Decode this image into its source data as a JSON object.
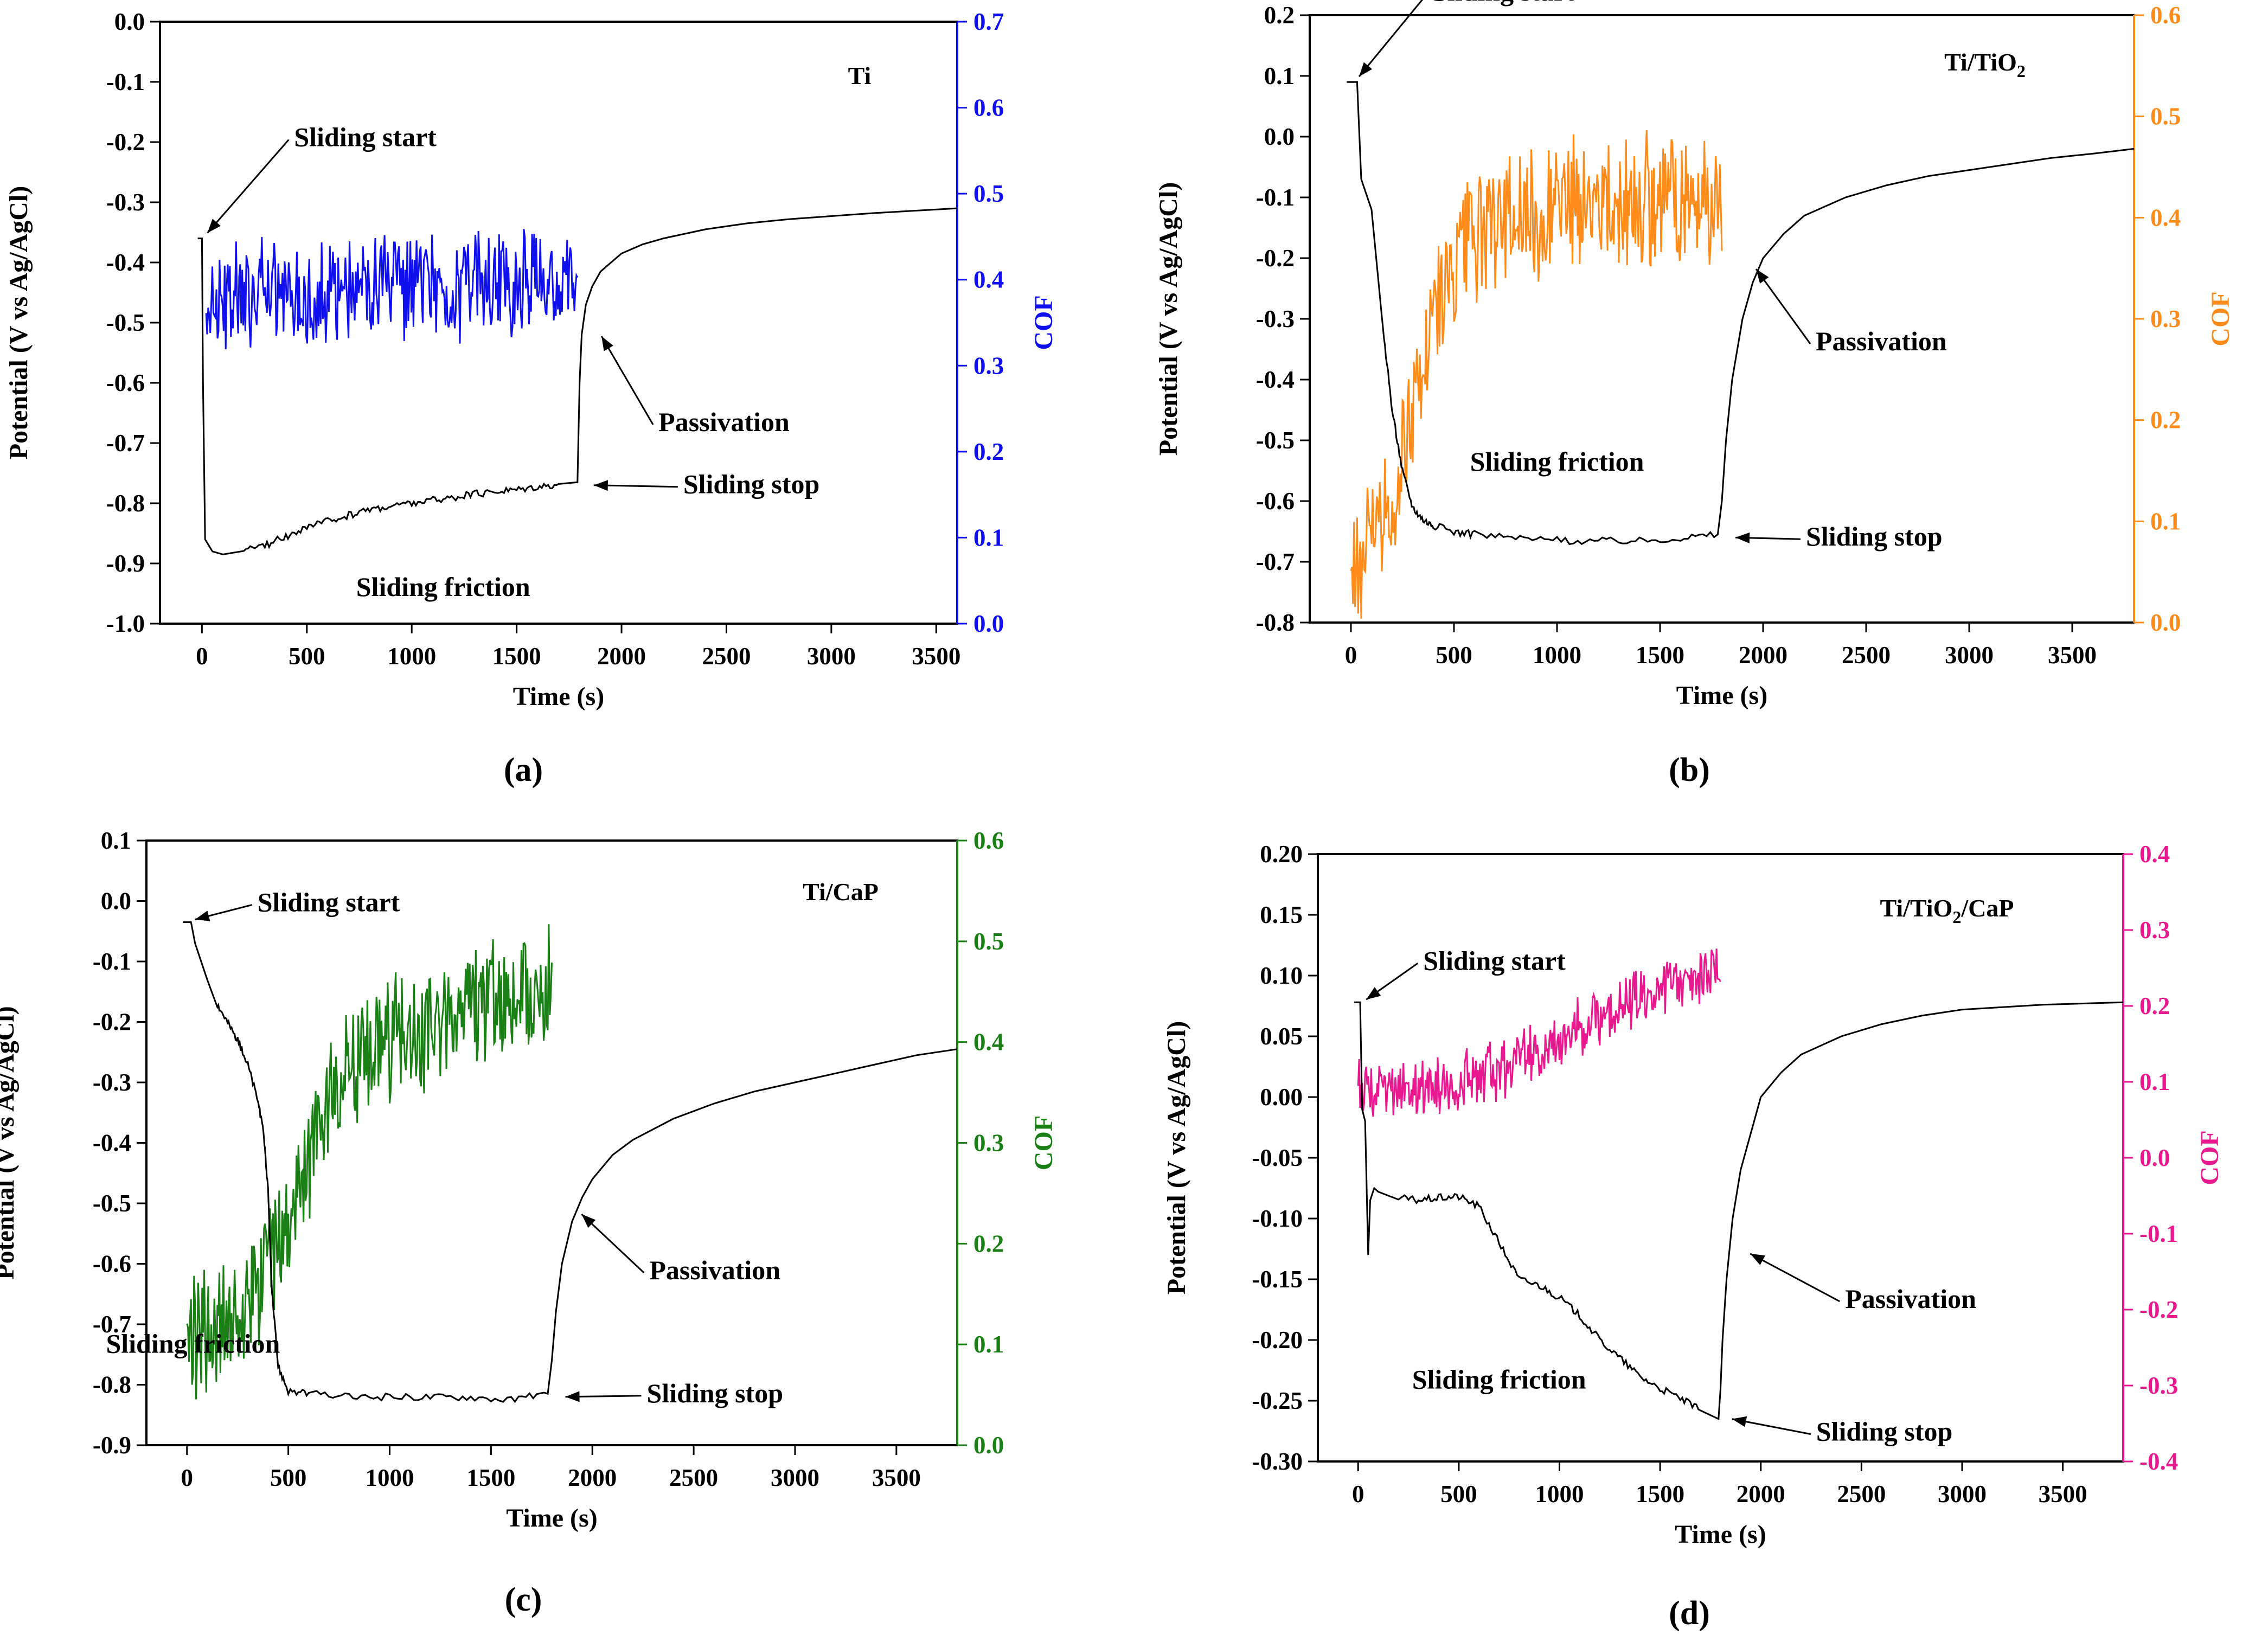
{
  "figure": {
    "panels": [
      "(a)",
      "(b)",
      "(c)",
      "(d)"
    ]
  },
  "colors": {
    "potential": "#000000",
    "cof_a": "#1010ee",
    "cof_b": "#ff8c1a",
    "cof_c": "#1a7f14",
    "cof_d": "#e8198f"
  },
  "chart_data": [
    {
      "type": "line",
      "label": "(a)",
      "title": "Ti",
      "xlabel": "Time (s)",
      "ylabel": "Potential (V vs Ag/AgCl)",
      "y2label": "COF",
      "xlim": [
        -200,
        3600
      ],
      "ylim": [
        -1.0,
        0.0
      ],
      "y2lim": [
        0.0,
        0.7
      ],
      "xticks": [
        0,
        500,
        1000,
        1500,
        2000,
        2500,
        3000,
        3500
      ],
      "yticks": [
        "0.0",
        "-0.1",
        "-0.2",
        "-0.3",
        "-0.4",
        "-0.5",
        "-0.6",
        "-0.7",
        "-0.8",
        "-0.9",
        "-1.0"
      ],
      "y2ticks": [
        "0.0",
        "0.1",
        "0.2",
        "0.3",
        "0.4",
        "0.5",
        "0.6",
        "0.7"
      ],
      "series": [
        {
          "name": "Potential",
          "axis": "left",
          "color": "#000000",
          "x": [
            -20,
            0,
            5,
            15,
            50,
            100,
            200,
            300,
            400,
            500,
            600,
            700,
            800,
            900,
            1000,
            1100,
            1200,
            1300,
            1400,
            1500,
            1600,
            1700,
            1790,
            1800,
            1810,
            1830,
            1860,
            1900,
            1950,
            2000,
            2100,
            2200,
            2400,
            2600,
            2800,
            3000,
            3200,
            3400,
            3600
          ],
          "values": [
            -0.36,
            -0.36,
            -0.6,
            -0.86,
            -0.88,
            -0.885,
            -0.88,
            -0.87,
            -0.855,
            -0.84,
            -0.83,
            -0.82,
            -0.81,
            -0.805,
            -0.8,
            -0.795,
            -0.79,
            -0.785,
            -0.78,
            -0.777,
            -0.772,
            -0.768,
            -0.765,
            -0.6,
            -0.52,
            -0.47,
            -0.44,
            -0.415,
            -0.4,
            -0.385,
            -0.37,
            -0.36,
            -0.345,
            -0.335,
            -0.328,
            -0.323,
            -0.318,
            -0.314,
            -0.31
          ]
        },
        {
          "name": "COF",
          "axis": "right",
          "color": "#1010ee",
          "x_range": [
            20,
            1790
          ],
          "mean": [
            0.38,
            0.38,
            0.385,
            0.39,
            0.395,
            0.4
          ],
          "amp": 0.055
        }
      ],
      "annotations": [
        {
          "text": "Sliding start",
          "x": 0,
          "y": -0.36
        },
        {
          "text": "Passivation",
          "x": 1840,
          "y": -0.5
        },
        {
          "text": "Sliding stop",
          "x": 1790,
          "y": -0.77
        },
        {
          "text": "Sliding friction",
          "x": 1150,
          "y": -0.9
        }
      ]
    },
    {
      "type": "line",
      "label": "(b)",
      "title": "Ti/TiO",
      "title_sub": "2",
      "xlabel": "Time (s)",
      "ylabel": "Potential (V vs Ag/AgCl)",
      "y2label": "COF",
      "xlim": [
        -200,
        3800
      ],
      "ylim": [
        -0.8,
        0.2
      ],
      "y2lim": [
        0.0,
        0.6
      ],
      "xticks": [
        0,
        500,
        1000,
        1500,
        2000,
        2500,
        3000,
        3500
      ],
      "yticks": [
        "0.2",
        "0.1",
        "0.0",
        "-0.1",
        "-0.2",
        "-0.3",
        "-0.4",
        "-0.5",
        "-0.6",
        "-0.7",
        "-0.8"
      ],
      "y2ticks": [
        "0.0",
        "0.1",
        "0.2",
        "0.3",
        "0.4",
        "0.5",
        "0.6"
      ],
      "series": [
        {
          "name": "Potential",
          "axis": "left",
          "color": "#000000",
          "x": [
            -20,
            0,
            30,
            50,
            60,
            100,
            150,
            200,
            250,
            300,
            350,
            400,
            500,
            600,
            800,
            1000,
            1200,
            1400,
            1600,
            1780,
            1800,
            1820,
            1850,
            1900,
            1950,
            2000,
            2100,
            2200,
            2400,
            2600,
            2800,
            3000,
            3200,
            3400,
            3600,
            3800
          ],
          "values": [
            0.09,
            0.09,
            0.09,
            -0.07,
            -0.08,
            -0.12,
            -0.3,
            -0.45,
            -0.55,
            -0.61,
            -0.63,
            -0.64,
            -0.65,
            -0.655,
            -0.66,
            -0.665,
            -0.665,
            -0.665,
            -0.66,
            -0.655,
            -0.6,
            -0.5,
            -0.4,
            -0.3,
            -0.24,
            -0.2,
            -0.16,
            -0.13,
            -0.1,
            -0.08,
            -0.065,
            -0.055,
            -0.045,
            -0.035,
            -0.028,
            -0.02
          ]
        },
        {
          "name": "COF",
          "axis": "right",
          "color": "#ff8c1a",
          "x_range": [
            0,
            1800
          ],
          "mean": [
            0.05,
            0.12,
            0.3,
            0.38,
            0.4,
            0.41,
            0.42,
            0.41,
            0.42,
            0.41
          ],
          "amp": 0.06
        }
      ],
      "annotations": [
        {
          "text": "Sliding start",
          "x": 0,
          "y": 0.09
        },
        {
          "text": "Passivation",
          "x": 1900,
          "y": -0.2
        },
        {
          "text": "Sliding stop",
          "x": 1800,
          "y": -0.66
        },
        {
          "text": "Sliding friction",
          "x": 1000,
          "y": -0.55
        }
      ]
    },
    {
      "type": "line",
      "label": "(c)",
      "title": "Ti/CaP",
      "xlabel": "Time (s)",
      "ylabel": "Potential (V vs Ag/AgCl)",
      "y2label": "COF",
      "xlim": [
        -200,
        3800
      ],
      "ylim": [
        -0.9,
        0.1
      ],
      "y2lim": [
        0.0,
        0.6
      ],
      "xticks": [
        0,
        500,
        1000,
        1500,
        2000,
        2500,
        3000,
        3500
      ],
      "yticks": [
        "0.1",
        "0.0",
        "-0.1",
        "-0.2",
        "-0.3",
        "-0.4",
        "-0.5",
        "-0.6",
        "-0.7",
        "-0.8",
        "-0.9"
      ],
      "y2ticks": [
        "0.0",
        "0.1",
        "0.2",
        "0.3",
        "0.4",
        "0.5",
        "0.6"
      ],
      "series": [
        {
          "name": "Potential",
          "axis": "left",
          "color": "#000000",
          "x": [
            -20,
            0,
            20,
            40,
            70,
            100,
            150,
            200,
            250,
            300,
            350,
            380,
            400,
            420,
            450,
            500,
            600,
            800,
            1000,
            1200,
            1400,
            1600,
            1780,
            1800,
            1820,
            1850,
            1900,
            1950,
            2000,
            2100,
            2200,
            2400,
            2600,
            2800,
            3000,
            3200,
            3400,
            3600,
            3800
          ],
          "values": [
            -0.035,
            -0.035,
            -0.035,
            -0.07,
            -0.1,
            -0.13,
            -0.17,
            -0.2,
            -0.23,
            -0.27,
            -0.33,
            -0.39,
            -0.48,
            -0.65,
            -0.77,
            -0.81,
            -0.815,
            -0.82,
            -0.82,
            -0.82,
            -0.82,
            -0.825,
            -0.815,
            -0.76,
            -0.68,
            -0.6,
            -0.53,
            -0.49,
            -0.46,
            -0.42,
            -0.395,
            -0.36,
            -0.335,
            -0.315,
            -0.3,
            -0.285,
            -0.27,
            -0.255,
            -0.245
          ]
        },
        {
          "name": "COF",
          "axis": "right",
          "color": "#1a7f14",
          "x_range": [
            0,
            1800
          ],
          "mean": [
            0.1,
            0.12,
            0.15,
            0.2,
            0.33,
            0.38,
            0.4,
            0.41,
            0.43,
            0.44,
            0.44,
            0.45
          ],
          "amp": 0.055
        }
      ],
      "annotations": [
        {
          "text": "Sliding start",
          "x": 0,
          "y": -0.035
        },
        {
          "text": "Passivation",
          "x": 1880,
          "y": -0.5
        },
        {
          "text": "Sliding stop",
          "x": 1800,
          "y": -0.82
        },
        {
          "text": "Sliding friction",
          "x": 1100,
          "y": -0.72
        }
      ]
    },
    {
      "type": "line",
      "label": "(d)",
      "title": "Ti/TiO",
      "title_sub": "2",
      "title_tail": "/CaP",
      "xlabel": "Time (s)",
      "ylabel": "Potential (V vs Ag/AgCl)",
      "y2label": "COF",
      "xlim": [
        -200,
        3800
      ],
      "ylim": [
        -0.3,
        0.2
      ],
      "y2lim": [
        -0.4,
        0.4
      ],
      "xticks": [
        0,
        500,
        1000,
        1500,
        2000,
        2500,
        3000,
        3500
      ],
      "yticks": [
        "0.20",
        "0.15",
        "0.10",
        "0.05",
        "0.00",
        "-0.05",
        "-0.10",
        "-0.15",
        "-0.20",
        "-0.25",
        "-0.30"
      ],
      "y2ticks": [
        "0.4",
        "0.3",
        "0.2",
        "0.1",
        "0.0",
        "-0.1",
        "-0.2",
        "-0.3",
        "-0.4"
      ],
      "series": [
        {
          "name": "Potential",
          "axis": "left",
          "color": "#000000",
          "x": [
            -20,
            0,
            10,
            20,
            35,
            50,
            60,
            80,
            100,
            200,
            300,
            400,
            500,
            600,
            700,
            800,
            900,
            1000,
            1100,
            1200,
            1300,
            1400,
            1500,
            1600,
            1700,
            1790,
            1800,
            1810,
            1830,
            1860,
            1900,
            1950,
            2000,
            2100,
            2200,
            2400,
            2600,
            2800,
            3000,
            3200,
            3400,
            3600,
            3800
          ],
          "values": [
            0.078,
            0.078,
            0.078,
            -0.01,
            -0.02,
            -0.13,
            -0.085,
            -0.075,
            -0.078,
            -0.083,
            -0.085,
            -0.083,
            -0.082,
            -0.09,
            -0.12,
            -0.15,
            -0.155,
            -0.165,
            -0.18,
            -0.2,
            -0.215,
            -0.23,
            -0.24,
            -0.248,
            -0.258,
            -0.265,
            -0.24,
            -0.2,
            -0.15,
            -0.1,
            -0.06,
            -0.03,
            0.0,
            0.02,
            0.035,
            0.05,
            0.06,
            0.067,
            0.072,
            0.074,
            0.076,
            0.077,
            0.078
          ]
        },
        {
          "name": "COF",
          "axis": "right",
          "color": "#e8198f",
          "x_range": [
            0,
            1800
          ],
          "mean": [
            0.09,
            0.09,
            0.09,
            0.1,
            0.11,
            0.13,
            0.15,
            0.18,
            0.2,
            0.22,
            0.24,
            0.24
          ],
          "amp": 0.035
        }
      ],
      "annotations": [
        {
          "text": "Sliding start",
          "x": 0,
          "y": 0.078
        },
        {
          "text": "Passivation",
          "x": 1880,
          "y": -0.12
        },
        {
          "text": "Sliding stop",
          "x": 1790,
          "y": -0.265
        },
        {
          "text": "Sliding friction",
          "x": 700,
          "y": -0.24
        }
      ]
    }
  ]
}
